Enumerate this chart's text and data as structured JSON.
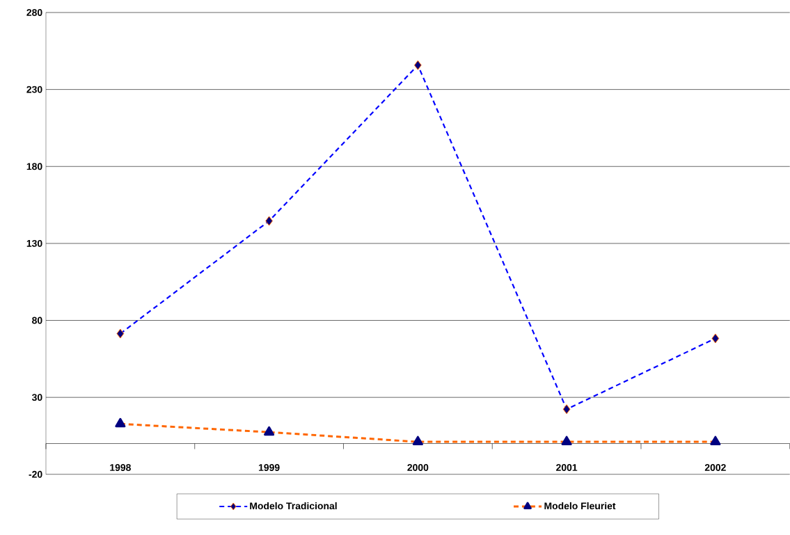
{
  "chart_data": {
    "type": "line",
    "categories": [
      "1998",
      "1999",
      "2000",
      "2001",
      "2002"
    ],
    "series": [
      {
        "name": "Modelo Tradicional",
        "color": "#0000ff",
        "values": [
          71.4,
          144.6,
          245.8,
          22.3,
          68.3
        ],
        "marker": "diamond",
        "line_style": "dashed"
      },
      {
        "name": "Modelo Fleuriet",
        "color": "#ff6600",
        "values": [
          12.8,
          7.4,
          1.1,
          1.1,
          1.1
        ],
        "marker": "triangle",
        "line_style": "dashed"
      }
    ],
    "ylim": [
      -20,
      280
    ],
    "yticks": [
      -20,
      30,
      80,
      130,
      180,
      230,
      280
    ],
    "grid": "y",
    "legend": "bottom"
  }
}
